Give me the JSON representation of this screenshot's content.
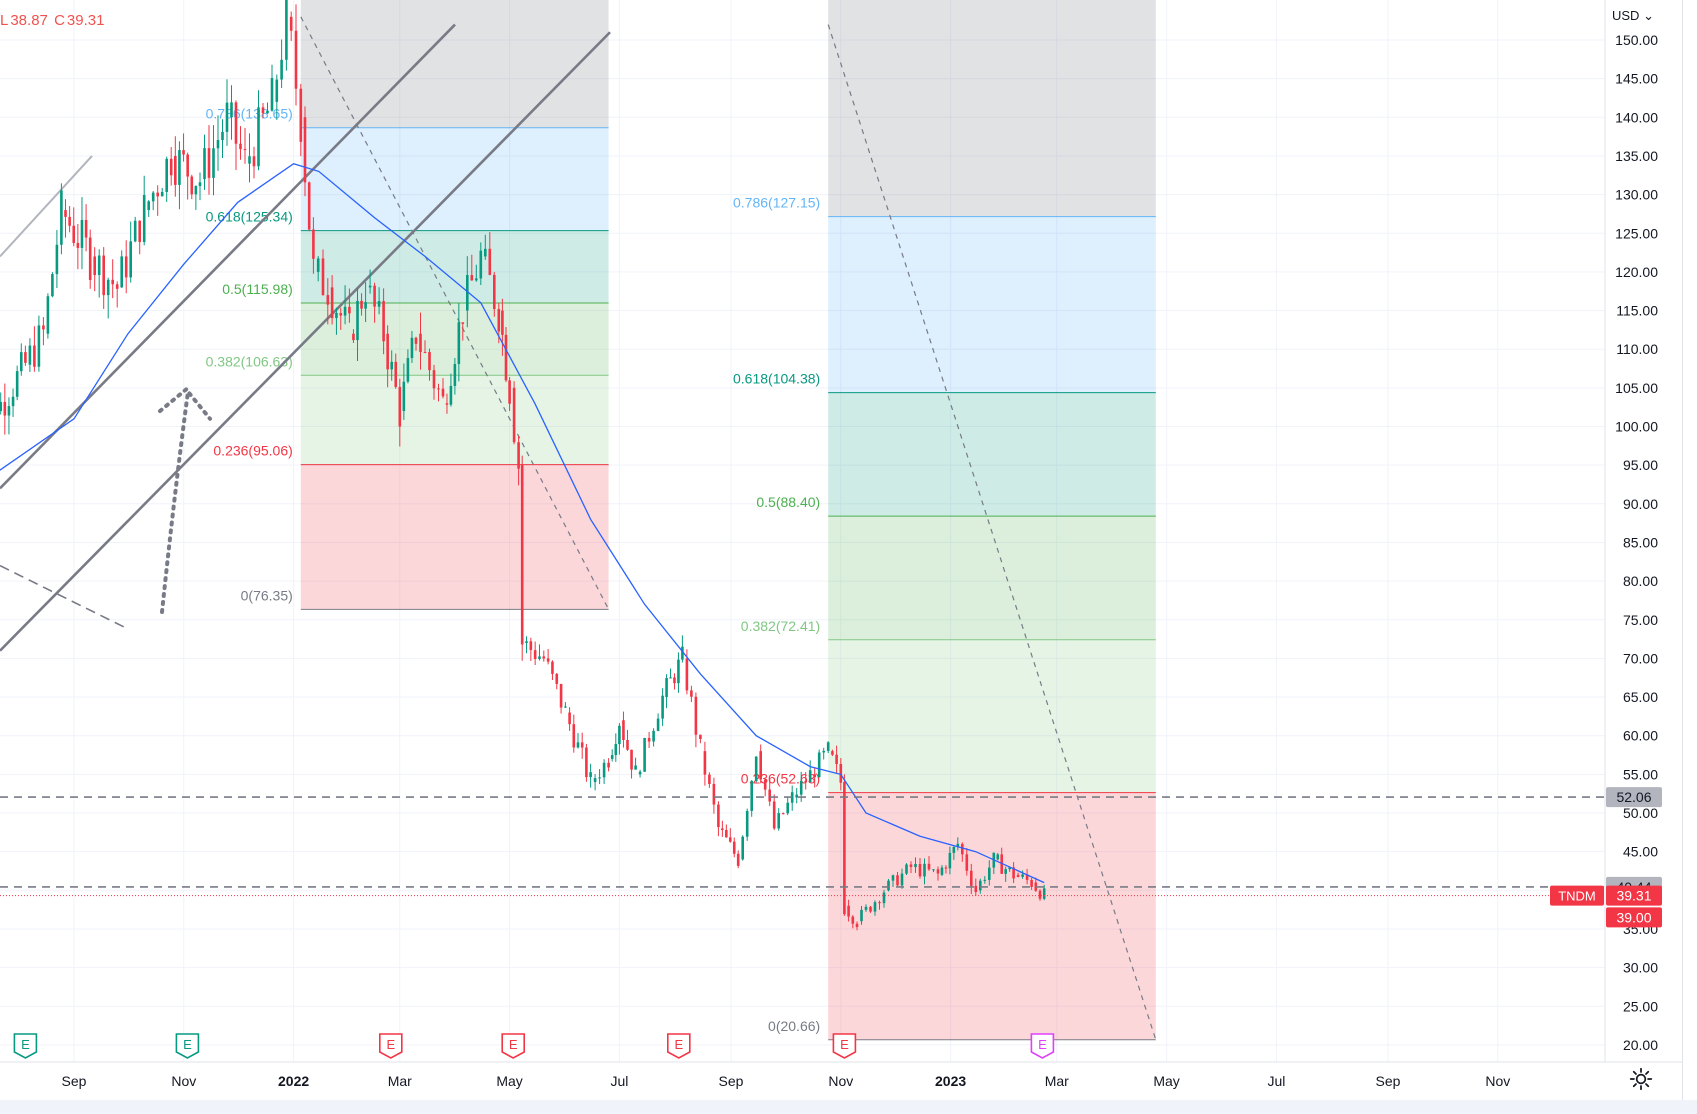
{
  "header": {
    "low_prefix": "L",
    "low_value": "38.87",
    "close_prefix": "C",
    "close_value": "39.31"
  },
  "price_scale": {
    "currency": "USD",
    "ticks": [
      "150.00",
      "145.00",
      "140.00",
      "135.00",
      "130.00",
      "125.00",
      "120.00",
      "115.00",
      "110.00",
      "105.00",
      "100.00",
      "95.00",
      "90.00",
      "85.00",
      "80.00",
      "75.00",
      "70.00",
      "65.00",
      "60.00",
      "55.00",
      "50.00",
      "45.00",
      "40.00",
      "35.00",
      "30.00",
      "25.00",
      "20.00"
    ],
    "badges": {
      "level_upper": "52.06",
      "level_lower": "40.44",
      "symbol": "TNDM",
      "last_price": "39.31",
      "countdown_price": "39.00"
    }
  },
  "time_scale": {
    "labels": [
      "Sep",
      "Nov",
      "2022",
      "Mar",
      "May",
      "Jul",
      "Sep",
      "Nov",
      "2023",
      "Mar",
      "May",
      "Jul",
      "Sep",
      "Nov"
    ],
    "bold_labels": [
      "2022",
      "2023"
    ]
  },
  "earnings_markers": [
    {
      "label": "E",
      "kind": "green"
    },
    {
      "label": "E",
      "kind": "green"
    },
    {
      "label": "E",
      "kind": "red"
    },
    {
      "label": "E",
      "kind": "red"
    },
    {
      "label": "E",
      "kind": "red"
    },
    {
      "label": "E",
      "kind": "red"
    },
    {
      "label": "E",
      "kind": "magenta"
    }
  ],
  "fib_left": {
    "levels": [
      {
        "ratio": "0.786",
        "price": "138.65",
        "label": "0.786(138.65)",
        "color": "#64b5f6"
      },
      {
        "ratio": "0.618",
        "price": "125.34",
        "label": "0.618(125.34)",
        "color": "#089981"
      },
      {
        "ratio": "0.5",
        "price": "115.98",
        "label": "0.5(115.98)",
        "color": "#4caf50"
      },
      {
        "ratio": "0.382",
        "price": "106.63",
        "label": "0.382(106.63)",
        "color": "#81c784"
      },
      {
        "ratio": "0.236",
        "price": "95.06",
        "label": "0.236(95.06)",
        "color": "#f23645"
      },
      {
        "ratio": "0",
        "price": "76.35",
        "label": "0(76.35)",
        "color": "#787b86"
      }
    ]
  },
  "fib_right": {
    "levels": [
      {
        "ratio": "0.786",
        "price": "127.15",
        "label": "0.786(127.15)",
        "color": "#64b5f6"
      },
      {
        "ratio": "0.618",
        "price": "104.38",
        "label": "0.618(104.38)",
        "color": "#089981"
      },
      {
        "ratio": "0.5",
        "price": "88.40",
        "label": "0.5(88.40)",
        "color": "#4caf50"
      },
      {
        "ratio": "0.382",
        "price": "72.41",
        "label": "0.382(72.41)",
        "color": "#81c784"
      },
      {
        "ratio": "0.236",
        "price": "52.63",
        "label": "0.236(52.63)",
        "color": "#f23645"
      },
      {
        "ratio": "0",
        "price": "20.66",
        "label": "0(20.66)",
        "color": "#787b86"
      }
    ]
  },
  "chart_data": {
    "type": "candlestick",
    "symbol": "TNDM",
    "currency": "USD",
    "ylim": [
      20,
      152
    ],
    "y_scale": "linear",
    "grid": true,
    "price_path": [
      [
        "2021-07-05",
        95
      ],
      [
        "2021-07-20",
        102
      ],
      [
        "2021-08-05",
        108
      ],
      [
        "2021-08-15",
        112
      ],
      [
        "2021-08-25",
        128
      ],
      [
        "2021-09-10",
        122
      ],
      [
        "2021-09-25",
        118
      ],
      [
        "2021-10-10",
        128
      ],
      [
        "2021-10-25",
        135
      ],
      [
        "2021-11-10",
        132
      ],
      [
        "2021-11-25",
        140
      ],
      [
        "2021-12-05",
        134
      ],
      [
        "2021-12-20",
        142
      ],
      [
        "2021-12-28",
        153
      ],
      [
        "2022-01-05",
        140
      ],
      [
        "2022-01-12",
        120
      ],
      [
        "2022-01-20",
        118
      ],
      [
        "2022-02-01",
        112
      ],
      [
        "2022-02-10",
        118
      ],
      [
        "2022-02-20",
        112
      ],
      [
        "2022-03-01",
        102
      ],
      [
        "2022-03-10",
        112
      ],
      [
        "2022-03-25",
        103
      ],
      [
        "2022-04-05",
        115
      ],
      [
        "2022-04-15",
        122
      ],
      [
        "2022-04-25",
        115
      ],
      [
        "2022-05-01",
        105
      ],
      [
        "2022-05-06",
        95
      ],
      [
        "2022-05-08",
        72
      ],
      [
        "2022-05-20",
        70
      ],
      [
        "2022-06-01",
        63
      ],
      [
        "2022-06-15",
        54
      ],
      [
        "2022-06-25",
        57
      ],
      [
        "2022-07-01",
        62
      ],
      [
        "2022-07-10",
        55
      ],
      [
        "2022-07-25",
        65
      ],
      [
        "2022-08-05",
        70
      ],
      [
        "2022-08-15",
        58
      ],
      [
        "2022-08-25",
        48
      ],
      [
        "2022-09-05",
        44
      ],
      [
        "2022-09-15",
        58
      ],
      [
        "2022-09-25",
        48
      ],
      [
        "2022-10-05",
        52
      ],
      [
        "2022-10-15",
        55
      ],
      [
        "2022-10-25",
        58
      ],
      [
        "2022-11-01",
        54
      ],
      [
        "2022-11-03",
        38
      ],
      [
        "2022-11-10",
        36
      ],
      [
        "2022-11-25",
        40
      ],
      [
        "2022-12-10",
        43
      ],
      [
        "2022-12-25",
        42
      ],
      [
        "2023-01-05",
        46
      ],
      [
        "2023-01-15",
        40
      ],
      [
        "2023-01-25",
        44
      ],
      [
        "2023-02-05",
        42
      ],
      [
        "2023-02-15",
        41
      ],
      [
        "2023-02-22",
        39.31
      ]
    ],
    "moving_average": [
      [
        "2021-07-01",
        91
      ],
      [
        "2021-09-01",
        101
      ],
      [
        "2021-10-01",
        112
      ],
      [
        "2021-11-01",
        121
      ],
      [
        "2021-12-01",
        129
      ],
      [
        "2022-01-01",
        134
      ],
      [
        "2022-01-15",
        133
      ],
      [
        "2022-02-15",
        127
      ],
      [
        "2022-03-15",
        122
      ],
      [
        "2022-04-15",
        116
      ],
      [
        "2022-05-15",
        103
      ],
      [
        "2022-06-15",
        88
      ],
      [
        "2022-07-15",
        77
      ],
      [
        "2022-08-15",
        68
      ],
      [
        "2022-09-15",
        60
      ],
      [
        "2022-10-15",
        56
      ],
      [
        "2022-11-01",
        55
      ],
      [
        "2022-11-15",
        50
      ],
      [
        "2022-12-15",
        47
      ],
      [
        "2023-01-15",
        45
      ],
      [
        "2023-02-22",
        41
      ]
    ],
    "horizontal_levels": [
      52.06,
      40.44
    ],
    "last_price": 39.31,
    "fib_left_span": [
      "2022-01-05",
      "2022-06-25"
    ],
    "fib_right_span": [
      "2022-10-25",
      "2023-04-25"
    ]
  }
}
